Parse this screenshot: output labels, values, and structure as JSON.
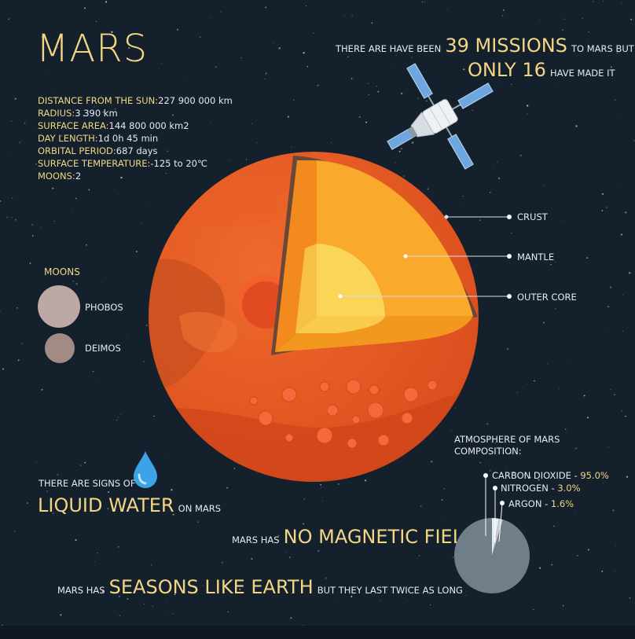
{
  "title": "MARS",
  "stats": [
    {
      "label": "DISTANCE FROM THE SUN:",
      "value": "227 900 000 km"
    },
    {
      "label": "RADIUS:",
      "value": "3 390 km"
    },
    {
      "label": "SURFACE AREA:",
      "value": "144 800 000  km2"
    },
    {
      "label": "DAY LENGTH:",
      "value": "1d 0h 45 min"
    },
    {
      "label": "ORBITAL PERIOD:",
      "value": "687 days"
    },
    {
      "label": "SURFACE TEMPERATURE:",
      "value": "-125 to 20℃"
    },
    {
      "label": "MOONS:",
      "value": "2"
    }
  ],
  "missions": {
    "line1_pre": "THERE ARE HAVE BEEN",
    "line1_big": "39 MISSIONS",
    "line1_post": "TO MARS BUT",
    "line2_big": "ONLY 16",
    "line2_post": "HAVE MADE IT"
  },
  "layers": {
    "crust": "CRUST",
    "mantle": "MANTLE",
    "outer_core": "OUTER CORE"
  },
  "moons": {
    "heading": "MOONS",
    "phobos": "PHOBOS",
    "deimos": "DEIMOS"
  },
  "water": {
    "pre": "THERE ARE SIGNS OF",
    "big": "LIQUID WATER",
    "post": "ON MARS"
  },
  "magnetic": {
    "pre": "MARS HAS",
    "big": "NO MAGNETIC FIELD"
  },
  "seasons": {
    "pre": "MARS HAS",
    "big": "SEASONS LIKE EARTH",
    "post": "BUT THEY LAST TWICE AS LONG"
  },
  "atmosphere": {
    "title": "ATMOSPHERE OF MARS",
    "subtitle": "COMPOSITION:",
    "items": [
      {
        "name": "CARBON DIOXIDE - ",
        "value": "95.0%",
        "pct": 95.0
      },
      {
        "name": "NITROGEN - ",
        "value": "3.0%",
        "pct": 3.0
      },
      {
        "name": "ARGON - ",
        "value": "1.6%",
        "pct": 1.6
      }
    ]
  },
  "colors": {
    "accent": "#f3d684",
    "background": "#14212d",
    "mars": "#e05a24",
    "mantle": "#f7a52a",
    "core": "#fad255"
  }
}
